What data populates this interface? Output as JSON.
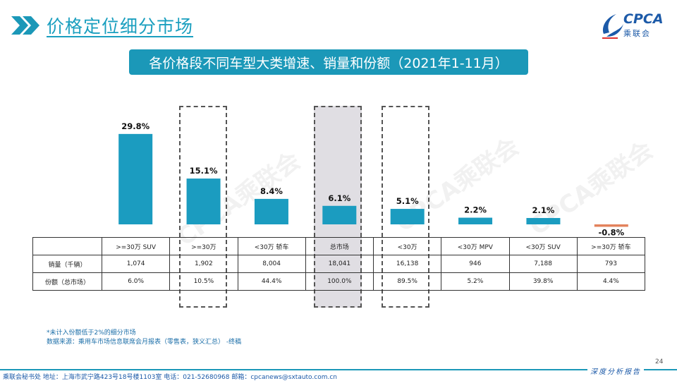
{
  "header": {
    "title": "价格定位细分市场",
    "logo_text": "CPCA",
    "logo_sub": "乘联会"
  },
  "banner": "各价格段不同车型大类增速、销量和份额（2021年1-11月）",
  "watermark": "CPCA乘联会",
  "chart_data": {
    "type": "bar",
    "title": "各价格段不同车型大类增速、销量和份额（2021年1-11月）",
    "categories": [
      ">=30万 SUV",
      ">=30万",
      "<30万 轿车",
      "总市场",
      "<30万",
      "<30万 MPV",
      "<30万 SUV",
      ">=30万 轿车"
    ],
    "values": [
      29.8,
      15.1,
      8.4,
      6.1,
      5.1,
      2.2,
      2.1,
      -0.8
    ],
    "value_labels": [
      "29.8%",
      "15.1%",
      "8.4%",
      "6.1%",
      "5.1%",
      "2.2%",
      "2.1%",
      "-0.8%"
    ],
    "unit": "%",
    "colors": {
      "positive": "#1b9cc0",
      "negative": "#e3825c"
    },
    "highlighted_categories": [
      ">=30万",
      "总市场",
      "<30万"
    ],
    "shaded_category": "总市场"
  },
  "table": {
    "rows": [
      {
        "label": "销量（千辆）",
        "values": [
          "1,074",
          "1,902",
          "8,004",
          "18,041",
          "16,138",
          "946",
          "7,188",
          "793"
        ]
      },
      {
        "label": "份额（总市场）",
        "values": [
          "6.0%",
          "10.5%",
          "44.4%",
          "100.0%",
          "89.5%",
          "5.2%",
          "39.8%",
          "4.4%"
        ]
      }
    ]
  },
  "notes": {
    "line1": "*未计入份额低于2%的细分市场",
    "line2": "数据来源：乘用车市场信息联席会月报表（零售表，狭义汇总） -终稿"
  },
  "page_number": "24",
  "footer": {
    "address": "乘联会秘书处   地址：上海市武宁路423号18号楼1103室  电话：021-52680968   邮箱：cpcanews@sxtauto.com.cn",
    "right_label": "深度分析报告"
  }
}
